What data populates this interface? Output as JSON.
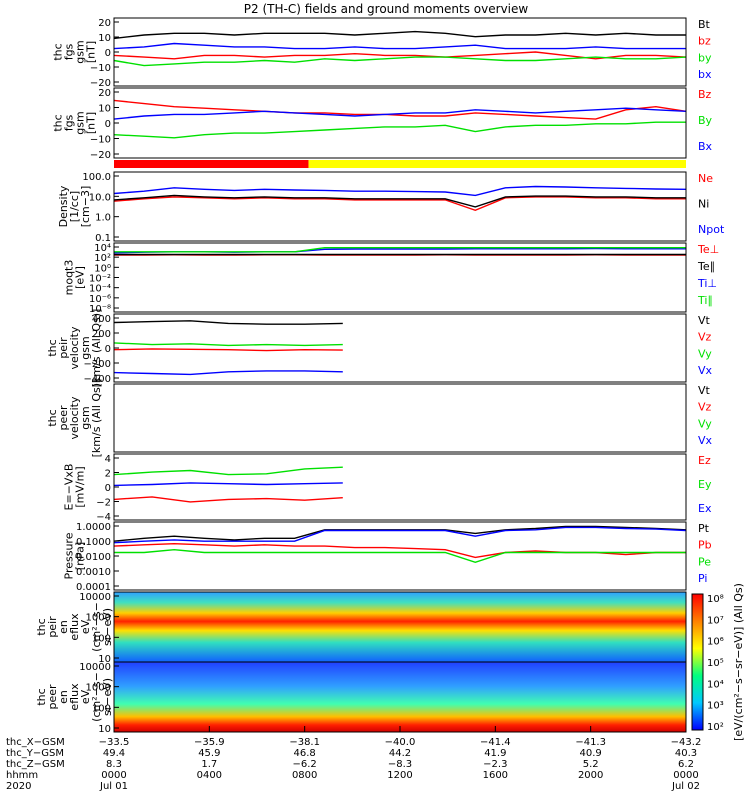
{
  "title": "P2 (TH-C) fields and ground moments overview",
  "colors": {
    "black": "#000000",
    "red": "#ff0000",
    "green": "#00e000",
    "blue": "#0000ff",
    "yellow": "#ffff00"
  },
  "chart_data": [
    {
      "type": "line",
      "ylabel": [
        "thc",
        "fgs",
        "gsm",
        "[nT]"
      ],
      "ticks": [
        "20",
        "10",
        "0",
        "−10",
        "−20"
      ],
      "ylim": [
        -20,
        20
      ],
      "series": [
        {
          "name": "Bt",
          "color": "#000000",
          "values": [
            8,
            10,
            11,
            11,
            10,
            11,
            11,
            11,
            10,
            11,
            12,
            11,
            9,
            10,
            10,
            11,
            10,
            11,
            10,
            10
          ]
        },
        {
          "name": "bz",
          "color": "#ff0000",
          "values": [
            -2,
            -3,
            -4,
            -2,
            -2,
            -3,
            -2,
            -2,
            -1,
            -2,
            -2,
            -3,
            -2,
            -1,
            0,
            -2,
            -4,
            -2,
            -2,
            -3
          ]
        },
        {
          "name": "by",
          "color": "#00e000",
          "values": [
            -5,
            -8,
            -7,
            -6,
            -6,
            -5,
            -6,
            -4,
            -5,
            -4,
            -3,
            -3,
            -4,
            -5,
            -5,
            -4,
            -3,
            -4,
            -4,
            -3
          ]
        },
        {
          "name": "bx",
          "color": "#0000ff",
          "values": [
            2,
            3,
            5,
            4,
            3,
            3,
            2,
            2,
            3,
            2,
            2,
            3,
            4,
            2,
            2,
            2,
            3,
            2,
            2,
            2
          ]
        }
      ]
    },
    {
      "type": "line",
      "ylabel": [
        "thc",
        "fgs",
        "gsm",
        "[nT]"
      ],
      "ticks": [
        "20",
        "10",
        "0",
        "−10",
        "−20"
      ],
      "ylim": [
        -25,
        20
      ],
      "series": [
        {
          "name": "Bz",
          "color": "#ff0000",
          "values": [
            12,
            10,
            8,
            7,
            6,
            5,
            4,
            4,
            3,
            3,
            2,
            2,
            4,
            3,
            2,
            1,
            0,
            6,
            8,
            5
          ]
        },
        {
          "name": "By",
          "color": "#00e000",
          "values": [
            -10,
            -11,
            -12,
            -10,
            -9,
            -9,
            -8,
            -7,
            -6,
            -5,
            -5,
            -4,
            -8,
            -5,
            -4,
            -4,
            -3,
            -3,
            -2,
            -2
          ]
        },
        {
          "name": "Bx",
          "color": "#0000ff",
          "values": [
            0,
            2,
            3,
            3,
            4,
            5,
            4,
            3,
            2,
            3,
            4,
            4,
            6,
            5,
            4,
            5,
            6,
            7,
            6,
            5
          ]
        }
      ]
    },
    {
      "type": "line",
      "ylabel": [
        "Density",
        "[1/cc]",
        "[cm−3]"
      ],
      "ticks": [
        "100.0",
        "10.0",
        "1.0",
        "0.1"
      ],
      "log": true,
      "ylim": [
        0.05,
        200
      ],
      "series": [
        {
          "name": "Ne",
          "color": "#ff0000",
          "values": [
            6,
            8,
            10,
            9,
            8,
            9,
            8,
            8,
            7,
            7,
            7,
            7,
            2,
            9,
            10,
            10,
            9,
            9,
            8,
            8
          ]
        },
        {
          "name": "Ni",
          "color": "#000000",
          "values": [
            7,
            9,
            12,
            10,
            9,
            10,
            9,
            9,
            8,
            8,
            8,
            8,
            3,
            10,
            11,
            11,
            10,
            10,
            9,
            9
          ]
        },
        {
          "name": "Npot",
          "color": "#0000ff",
          "values": [
            15,
            20,
            30,
            25,
            22,
            25,
            23,
            22,
            20,
            20,
            19,
            18,
            12,
            30,
            35,
            33,
            30,
            28,
            26,
            25
          ]
        }
      ]
    },
    {
      "type": "line",
      "ylabel": [
        "moqt3",
        "[eV]"
      ],
      "ticks": [
        "10⁴",
        "10²",
        "10⁰",
        "10⁻²",
        "10⁻⁴",
        "10⁻⁶",
        "10⁻⁸"
      ],
      "log": true,
      "ylim": [
        1e-08,
        10000
      ],
      "series": [
        {
          "name": "Te⊥",
          "color": "#ff0000",
          "values": [
            80,
            80,
            90,
            80,
            80,
            90,
            90,
            80,
            80,
            80,
            80,
            90,
            80,
            80,
            80,
            80,
            90,
            80,
            80,
            80
          ]
        },
        {
          "name": "Te∥",
          "color": "#000000",
          "values": [
            100,
            100,
            100,
            100,
            100,
            100,
            100,
            100,
            100,
            100,
            100,
            100,
            100,
            100,
            100,
            100,
            100,
            100,
            100,
            100
          ]
        },
        {
          "name": "Ti⊥",
          "color": "#0000ff",
          "values": [
            200,
            250,
            300,
            300,
            250,
            300,
            300,
            800,
            900,
            900,
            900,
            900,
            1000,
            1000,
            1000,
            1000,
            1100,
            1000,
            1000,
            1000
          ]
        },
        {
          "name": "Ti∥",
          "color": "#00e000",
          "values": [
            300,
            300,
            300,
            300,
            300,
            300,
            300,
            1500,
            1500,
            1500,
            1500,
            1500,
            1500,
            1500,
            1500,
            1500,
            1500,
            1500,
            1500,
            1500
          ]
        }
      ]
    },
    {
      "type": "line",
      "ylabel": [
        "thc",
        "peir",
        "velocity",
        "gsm",
        "[km/s (All Qs)]"
      ],
      "ticks": [
        "400",
        "200",
        "0",
        "−200",
        "−400"
      ],
      "ylim": [
        -400,
        400
      ],
      "series": [
        {
          "name": "Vt",
          "color": "#000000",
          "values": [
            300,
            310,
            320,
            290,
            280,
            280,
            290
          ]
        },
        {
          "name": "Vz",
          "color": "#ff0000",
          "values": [
            -20,
            -10,
            -15,
            -20,
            -30,
            -20,
            -25
          ]
        },
        {
          "name": "Vy",
          "color": "#00e000",
          "values": [
            60,
            40,
            50,
            30,
            40,
            30,
            40
          ]
        },
        {
          "name": "Vx",
          "color": "#0000ff",
          "values": [
            -290,
            -300,
            -310,
            -280,
            -270,
            -270,
            -280
          ]
        }
      ]
    },
    {
      "type": "line",
      "ylabel": [
        "thc",
        "peer",
        "velocity",
        "gsm",
        "[km/s (All Qs)]"
      ],
      "ticks": [],
      "ylim": [
        -400,
        400
      ],
      "series": [
        {
          "name": "Vt",
          "color": "#000000",
          "values": []
        },
        {
          "name": "Vz",
          "color": "#ff0000",
          "values": []
        },
        {
          "name": "Vy",
          "color": "#00e000",
          "values": []
        },
        {
          "name": "Vx",
          "color": "#0000ff",
          "values": []
        }
      ]
    },
    {
      "type": "line",
      "ylabel": [
        "E=−VxB",
        "[mV/m]"
      ],
      "ticks": [
        "4",
        "2",
        "0",
        "−2",
        "−4"
      ],
      "ylim": [
        -4,
        4
      ],
      "series": [
        {
          "name": "Ez",
          "color": "#ff0000",
          "values": [
            -1.5,
            -1.2,
            -1.8,
            -1.5,
            -1.4,
            -1.6,
            -1.3
          ]
        },
        {
          "name": "Ey",
          "color": "#00e000",
          "values": [
            1.5,
            1.8,
            2.0,
            1.5,
            1.6,
            2.2,
            2.4
          ]
        },
        {
          "name": "Ex",
          "color": "#0000ff",
          "values": [
            0.2,
            0.3,
            0.5,
            0.4,
            0.3,
            0.4,
            0.5
          ]
        }
      ]
    },
    {
      "type": "line",
      "ylabel": [
        "Pressure",
        "[nPa]"
      ],
      "ticks": [
        "1.0000",
        "0.1000",
        "0.0100",
        "0.0010",
        "0.0001"
      ],
      "log": true,
      "ylim": [
        0.0001,
        1.5
      ],
      "series": [
        {
          "name": "Pt",
          "color": "#000000",
          "values": [
            0.1,
            0.15,
            0.2,
            0.15,
            0.12,
            0.15,
            0.15,
            0.5,
            0.5,
            0.5,
            0.5,
            0.5,
            0.3,
            0.5,
            0.6,
            0.8,
            0.8,
            0.7,
            0.6,
            0.5
          ]
        },
        {
          "name": "Pb",
          "color": "#ff0000",
          "values": [
            0.05,
            0.06,
            0.07,
            0.06,
            0.05,
            0.06,
            0.05,
            0.05,
            0.04,
            0.04,
            0.035,
            0.03,
            0.01,
            0.02,
            0.025,
            0.02,
            0.02,
            0.015,
            0.02,
            0.02
          ]
        },
        {
          "name": "Pe",
          "color": "#00e000",
          "values": [
            0.02,
            0.02,
            0.03,
            0.02,
            0.02,
            0.02,
            0.02,
            0.02,
            0.02,
            0.02,
            0.02,
            0.02,
            0.005,
            0.02,
            0.02,
            0.02,
            0.02,
            0.02,
            0.02,
            0.02
          ]
        },
        {
          "name": "Pi",
          "color": "#0000ff",
          "values": [
            0.08,
            0.1,
            0.12,
            0.1,
            0.1,
            0.1,
            0.1,
            0.45,
            0.45,
            0.45,
            0.45,
            0.45,
            0.2,
            0.45,
            0.5,
            0.7,
            0.7,
            0.6,
            0.55,
            0.45
          ]
        }
      ]
    },
    {
      "type": "heatmap",
      "ylabel": [
        "thc",
        "peir",
        "en",
        "eflux",
        "eV",
        "(cm²−s−",
        "sr−eV)"
      ],
      "ticks": [
        "10000",
        "1000",
        "100",
        "10"
      ],
      "log": true,
      "ylim": [
        5,
        30000
      ]
    },
    {
      "type": "heatmap",
      "ylabel": [
        "thc",
        "peer",
        "en",
        "eflux",
        "eV",
        "(cm²−s−",
        "sr−eV)"
      ],
      "ticks": [
        "10000",
        "1000",
        "100",
        "10"
      ],
      "log": true,
      "ylim": [
        5,
        30000
      ]
    }
  ],
  "colorbar": {
    "label": "[eV/(cm²−s−sr−eV)] (All Qs)",
    "ticks": [
      "10⁸",
      "10⁷",
      "10⁶",
      "10⁵",
      "10⁴",
      "10³",
      "10²"
    ]
  },
  "mode_bar": {
    "red_fraction": 0.34
  },
  "xaxis": {
    "row_labels": [
      "thc_X−GSM",
      "thc_Y−GSM",
      "thc_Z−GSM",
      "hhmm",
      "2020"
    ],
    "columns": [
      {
        "v": [
          "−33.5",
          "49.4",
          "8.3",
          "0000",
          "Jul 01"
        ]
      },
      {
        "v": [
          "−35.9",
          "45.9",
          "1.7",
          "0400",
          ""
        ]
      },
      {
        "v": [
          "−38.1",
          "46.8",
          "−6.2",
          "0800",
          ""
        ]
      },
      {
        "v": [
          "−40.0",
          "44.2",
          "−8.3",
          "1200",
          ""
        ]
      },
      {
        "v": [
          "−41.4",
          "41.9",
          "−2.3",
          "1600",
          ""
        ]
      },
      {
        "v": [
          "−41.3",
          "40.9",
          "5.2",
          "2000",
          ""
        ]
      },
      {
        "v": [
          "−43.2",
          "40.3",
          "6.2",
          "0000",
          "Jul 02"
        ]
      }
    ]
  }
}
